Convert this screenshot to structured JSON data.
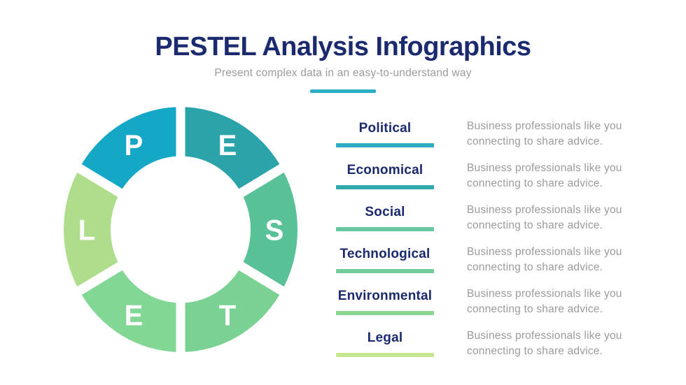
{
  "header": {
    "title": "PESTEL Analysis Infographics",
    "subtitle": "Present complex data in an easy-to-understand way",
    "divider_color": "#2aaec2"
  },
  "donut": {
    "letter_color": "#ffffff",
    "segments": [
      {
        "letter": "P",
        "color": "#15a7c6"
      },
      {
        "letter": "E",
        "color": "#2aa3ab"
      },
      {
        "letter": "S",
        "color": "#58c197"
      },
      {
        "letter": "T",
        "color": "#7ad292"
      },
      {
        "letter": "E",
        "color": "#82d794"
      },
      {
        "letter": "L",
        "color": "#aedd8c"
      }
    ]
  },
  "items": [
    {
      "label": "Political",
      "bar_color": "#2bacc0",
      "description": "Business professionals like you connecting to share advice."
    },
    {
      "label": "Economical",
      "bar_color": "#32a9ad",
      "description": "Business professionals like you connecting to share advice."
    },
    {
      "label": "Social",
      "bar_color": "#67c89e",
      "description": "Business professionals like you connecting to share advice."
    },
    {
      "label": "Technological",
      "bar_color": "#73cd9a",
      "description": "Business professionals like you connecting to share advice."
    },
    {
      "label": "Environmental",
      "bar_color": "#8cd690",
      "description": "Business professionals like you connecting to share advice."
    },
    {
      "label": "Legal",
      "bar_color": "#c7e78f",
      "description": "Business professionals like you connecting to share advice."
    }
  ],
  "colors": {
    "title_navy": "#1b2a6e",
    "text_gray": "#9b9b9b",
    "background": "#ffffff"
  }
}
